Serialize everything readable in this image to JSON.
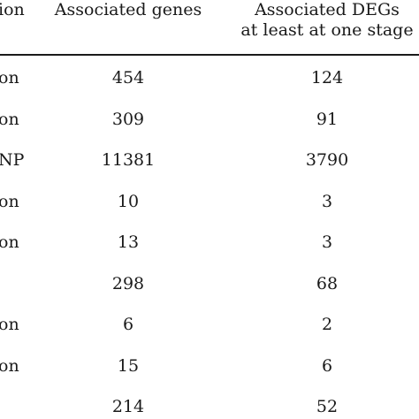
{
  "table": {
    "headers": [
      "ion",
      "Associated genes",
      "Associated DEGs\nat least at one stage"
    ],
    "rows": [
      [
        "on",
        "454",
        "124"
      ],
      [
        "on",
        "309",
        "91"
      ],
      [
        "NP",
        "11381",
        "3790"
      ],
      [
        "on",
        "10",
        "3"
      ],
      [
        "on",
        "13",
        "3"
      ],
      [
        "",
        "298",
        "68"
      ],
      [
        "on",
        "6",
        "2"
      ],
      [
        "on",
        "15",
        "6"
      ],
      [
        "",
        "214",
        "52"
      ]
    ]
  }
}
